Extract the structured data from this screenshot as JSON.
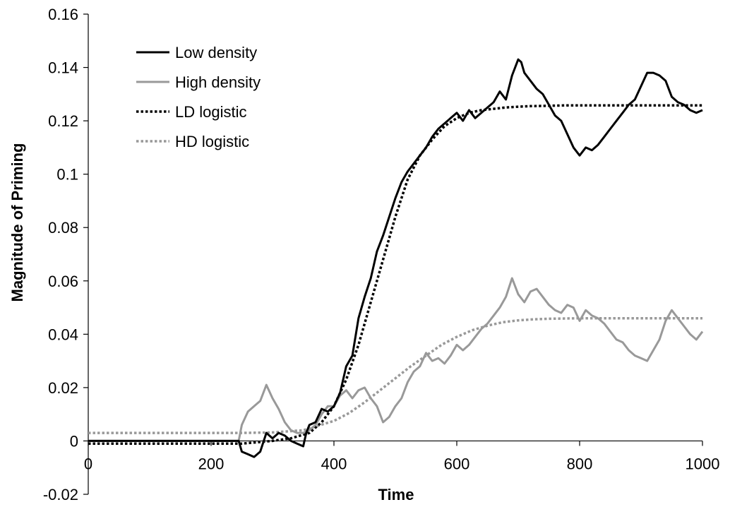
{
  "chart_data": {
    "type": "line",
    "xlabel": "Time",
    "ylabel": "Magnitude of Priming",
    "xlim": [
      0,
      1000
    ],
    "ylim": [
      -0.02,
      0.16
    ],
    "x_ticks": [
      "0",
      "200",
      "400",
      "600",
      "800",
      "1000"
    ],
    "y_ticks": [
      "-0.02",
      "0",
      "0.02",
      "0.04",
      "0.06",
      "0.08",
      "0.1",
      "0.12",
      "0.14",
      "0.16"
    ],
    "grid": false,
    "legend_position": "top-left",
    "series": [
      {
        "name": "Low density",
        "color": "#000000",
        "style": "solid",
        "x": [
          0,
          245,
          250,
          260,
          270,
          280,
          290,
          300,
          310,
          320,
          330,
          340,
          350,
          355,
          360,
          370,
          380,
          390,
          400,
          410,
          420,
          430,
          440,
          450,
          460,
          470,
          480,
          490,
          500,
          510,
          520,
          530,
          540,
          550,
          560,
          570,
          580,
          590,
          600,
          610,
          620,
          630,
          640,
          650,
          660,
          670,
          680,
          690,
          700,
          705,
          710,
          720,
          730,
          740,
          750,
          760,
          770,
          780,
          790,
          800,
          810,
          820,
          830,
          840,
          850,
          860,
          870,
          880,
          890,
          900,
          910,
          920,
          930,
          940,
          950,
          960,
          970,
          980,
          990,
          1000
        ],
        "values": [
          0,
          0,
          -0.004,
          -0.005,
          -0.006,
          -0.004,
          0.003,
          0.001,
          0.003,
          0.002,
          0.0,
          -0.001,
          -0.002,
          0.003,
          0.006,
          0.007,
          0.012,
          0.011,
          0.013,
          0.018,
          0.028,
          0.032,
          0.046,
          0.054,
          0.061,
          0.071,
          0.077,
          0.084,
          0.091,
          0.097,
          0.101,
          0.104,
          0.107,
          0.11,
          0.114,
          0.117,
          0.119,
          0.121,
          0.123,
          0.12,
          0.124,
          0.121,
          0.123,
          0.125,
          0.127,
          0.131,
          0.128,
          0.137,
          0.143,
          0.142,
          0.138,
          0.135,
          0.132,
          0.13,
          0.126,
          0.122,
          0.12,
          0.115,
          0.11,
          0.107,
          0.11,
          0.109,
          0.111,
          0.114,
          0.117,
          0.12,
          0.123,
          0.126,
          0.128,
          0.133,
          0.138,
          0.138,
          0.137,
          0.135,
          0.129,
          0.127,
          0.126,
          0.124,
          0.123,
          0.124
        ]
      },
      {
        "name": "High density",
        "color": "#999999",
        "style": "solid",
        "x": [
          0,
          245,
          250,
          260,
          270,
          280,
          290,
          300,
          310,
          320,
          330,
          340,
          350,
          360,
          370,
          380,
          390,
          400,
          410,
          420,
          430,
          440,
          450,
          460,
          470,
          480,
          490,
          500,
          510,
          520,
          530,
          540,
          550,
          560,
          570,
          580,
          590,
          600,
          610,
          620,
          630,
          640,
          650,
          660,
          670,
          680,
          690,
          700,
          710,
          720,
          730,
          740,
          750,
          760,
          770,
          780,
          790,
          800,
          810,
          820,
          830,
          840,
          850,
          860,
          870,
          880,
          890,
          900,
          910,
          920,
          930,
          940,
          950,
          960,
          970,
          980,
          990,
          1000
        ],
        "values": [
          0,
          0,
          0.006,
          0.011,
          0.013,
          0.015,
          0.021,
          0.016,
          0.012,
          0.007,
          0.004,
          0.003,
          0.003,
          0.004,
          0.006,
          0.01,
          0.013,
          0.013,
          0.017,
          0.019,
          0.016,
          0.019,
          0.02,
          0.016,
          0.013,
          0.007,
          0.009,
          0.013,
          0.016,
          0.022,
          0.026,
          0.028,
          0.033,
          0.03,
          0.031,
          0.029,
          0.032,
          0.036,
          0.034,
          0.036,
          0.039,
          0.042,
          0.044,
          0.047,
          0.05,
          0.054,
          0.061,
          0.055,
          0.052,
          0.056,
          0.057,
          0.054,
          0.051,
          0.049,
          0.048,
          0.051,
          0.05,
          0.045,
          0.049,
          0.047,
          0.046,
          0.044,
          0.041,
          0.038,
          0.037,
          0.034,
          0.032,
          0.031,
          0.03,
          0.034,
          0.038,
          0.045,
          0.049,
          0.046,
          0.043,
          0.04,
          0.038,
          0.041
        ]
      },
      {
        "name": "LD logistic",
        "color": "#000000",
        "style": "dotted",
        "x": [
          0,
          100,
          200,
          250,
          300,
          330,
          360,
          380,
          400,
          420,
          440,
          460,
          480,
          500,
          520,
          540,
          560,
          580,
          600,
          620,
          640,
          660,
          680,
          700,
          720,
          740,
          760,
          780,
          800,
          850,
          900,
          950,
          1000
        ],
        "values": [
          -0.001,
          -0.001,
          -0.001,
          -0.001,
          0.0,
          0.001,
          0.003,
          0.007,
          0.013,
          0.023,
          0.036,
          0.052,
          0.068,
          0.084,
          0.098,
          0.107,
          0.113,
          0.118,
          0.121,
          0.123,
          0.124,
          0.1245,
          0.125,
          0.1253,
          0.1255,
          0.1256,
          0.1257,
          0.1258,
          0.1258,
          0.1258,
          0.1258,
          0.1258,
          0.1258
        ]
      },
      {
        "name": "HD logistic",
        "color": "#999999",
        "style": "dotted",
        "x": [
          0,
          100,
          200,
          250,
          300,
          350,
          400,
          425,
          450,
          475,
          500,
          525,
          550,
          575,
          600,
          625,
          650,
          675,
          700,
          725,
          750,
          800,
          850,
          900,
          950,
          1000
        ],
        "values": [
          0.003,
          0.003,
          0.003,
          0.003,
          0.0032,
          0.004,
          0.0075,
          0.0105,
          0.0145,
          0.019,
          0.0235,
          0.028,
          0.032,
          0.036,
          0.039,
          0.0415,
          0.0432,
          0.0445,
          0.0452,
          0.0456,
          0.0458,
          0.046,
          0.046,
          0.046,
          0.046,
          0.046
        ]
      }
    ]
  }
}
